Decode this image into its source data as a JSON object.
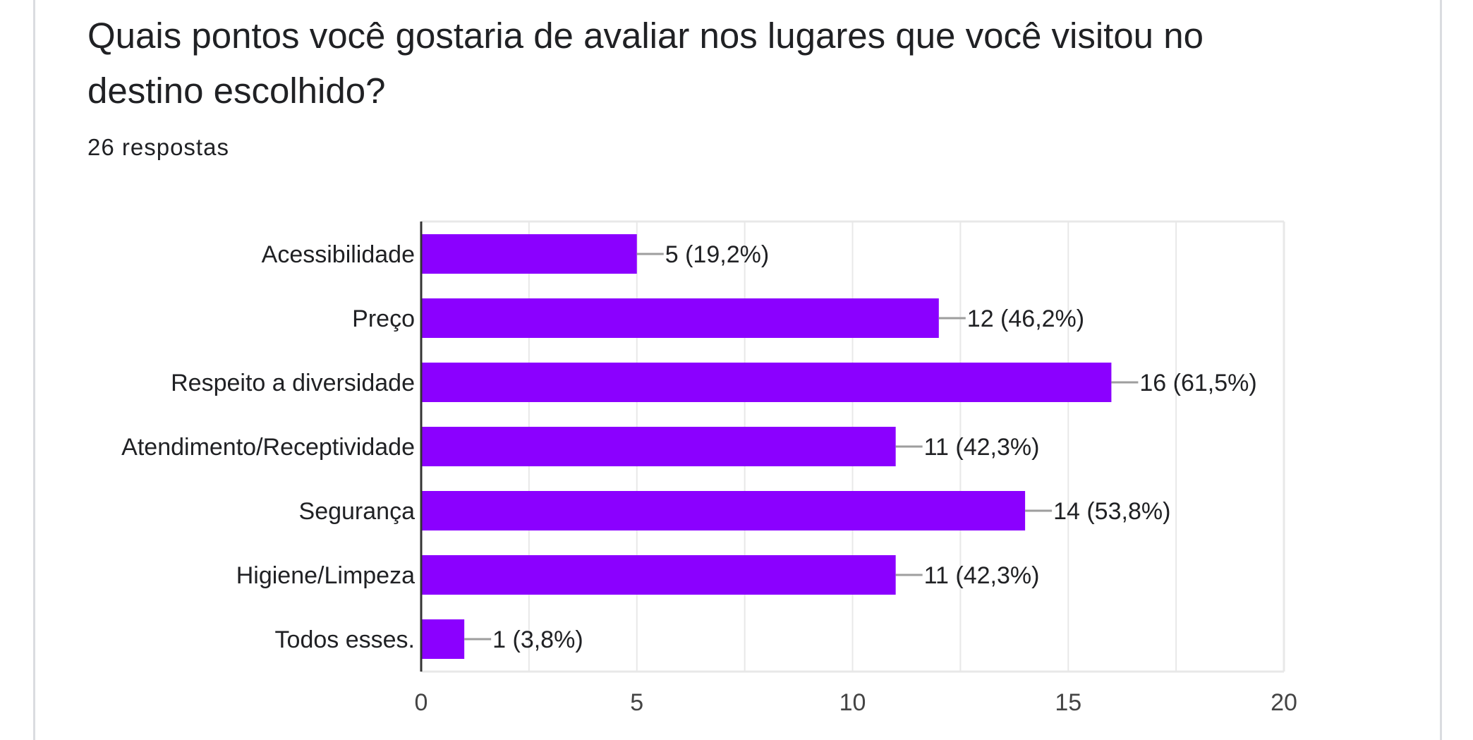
{
  "question": {
    "title": "Quais pontos você gostaria de avaliar nos lugares que você visitou no destino escolhido?",
    "responses_label": "26 respostas"
  },
  "colors": {
    "bar": "#8b00ff",
    "text": "#202124",
    "grid": "#e8e8e8",
    "axis": "#333333",
    "leader": "#9e9e9e",
    "card_border": "#dadce0"
  },
  "chart_data": {
    "type": "bar",
    "orientation": "horizontal",
    "categories": [
      "Acessibilidade",
      "Preço",
      "Respeito a diversidade",
      "Atendimento/Receptividade",
      "Segurança",
      "Higiene/Limpeza",
      "Todos esses."
    ],
    "values": [
      5,
      12,
      16,
      11,
      14,
      11,
      1
    ],
    "labels": [
      "5 (19,2%)",
      "12 (46,2%)",
      "16 (61,5%)",
      "11 (42,3%)",
      "14 (53,8%)",
      "11 (42,3%)",
      "1 (3,8%)"
    ],
    "xlim": [
      0,
      20
    ],
    "xticks": [
      "0",
      "5",
      "10",
      "15",
      "20"
    ],
    "grid": true
  }
}
